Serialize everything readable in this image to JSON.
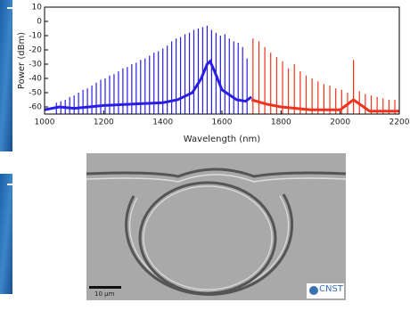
{
  "chart_data": {
    "type": "comb",
    "xlabel": "Wavelength (nm)",
    "ylabel": "Power (dBm)",
    "xlim": [
      1000,
      2200
    ],
    "xticks": [
      1000,
      1200,
      1400,
      1600,
      1800,
      2000,
      2200
    ],
    "ylim": [
      -65,
      10
    ],
    "yticks": [
      10,
      0,
      -10,
      -20,
      -30,
      -40,
      -50,
      -60
    ],
    "series": [
      {
        "style": "stem",
        "color": "#2a1ee6",
        "x": [
          1040,
          1055,
          1070,
          1085,
          1100,
          1115,
          1130,
          1145,
          1160,
          1175,
          1190,
          1205,
          1220,
          1235,
          1250,
          1265,
          1280,
          1295,
          1310,
          1325,
          1340,
          1355,
          1370,
          1385,
          1400,
          1415,
          1430,
          1445,
          1460,
          1475,
          1490,
          1505,
          1520,
          1535,
          1550,
          1565,
          1580,
          1595,
          1610,
          1625,
          1640,
          1655,
          1670,
          1685
        ],
        "values": [
          -57,
          -56,
          -55,
          -53,
          -52,
          -50,
          -48,
          -47,
          -45,
          -43,
          -41,
          -40,
          -38,
          -37,
          -35,
          -33,
          -32,
          -30,
          -29,
          -27,
          -26,
          -24,
          -22,
          -21,
          -19,
          -17,
          -14,
          -12,
          -11,
          -9,
          -8,
          -6,
          -5,
          -4,
          -3,
          -6,
          -8,
          -10,
          -9,
          -12,
          -14,
          -15,
          -18,
          -26
        ]
      },
      {
        "style": "line",
        "color": "#2a1ee6",
        "x": [
          1000,
          1050,
          1100,
          1200,
          1300,
          1400,
          1450,
          1500,
          1530,
          1550,
          1560,
          1575,
          1600,
          1650,
          1680,
          1700
        ],
        "values": [
          -62,
          -60,
          -61,
          -59,
          -58,
          -57,
          -55,
          -50,
          -40,
          -30,
          -28,
          -35,
          -48,
          -55,
          -56,
          -53
        ]
      },
      {
        "style": "stem",
        "color": "#f2321c",
        "x": [
          1705,
          1725,
          1745,
          1765,
          1785,
          1805,
          1825,
          1845,
          1865,
          1885,
          1905,
          1925,
          1945,
          1965,
          1985,
          2005,
          2025,
          2045,
          2065,
          2085,
          2105,
          2125,
          2145,
          2165,
          2185
        ],
        "values": [
          -12,
          -14,
          -18,
          -22,
          -25,
          -28,
          -33,
          -30,
          -35,
          -38,
          -40,
          -42,
          -44,
          -45,
          -47,
          -48,
          -50,
          -27,
          -49,
          -51,
          -52,
          -53,
          -54,
          -55,
          -55
        ]
      },
      {
        "style": "line",
        "color": "#f2321c",
        "x": [
          1700,
          1750,
          1800,
          1850,
          1900,
          1950,
          2000,
          2045,
          2100,
          2150,
          2200
        ],
        "values": [
          -55,
          -58,
          -60,
          -61,
          -62,
          -62,
          -62,
          -55,
          -63,
          -63,
          -63
        ]
      }
    ]
  },
  "image": {
    "scale_bar": "10 µm",
    "logo": "CNST"
  }
}
